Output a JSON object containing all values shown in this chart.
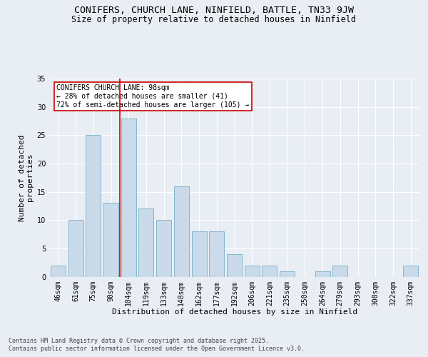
{
  "title_line1": "CONIFERS, CHURCH LANE, NINFIELD, BATTLE, TN33 9JW",
  "title_line2": "Size of property relative to detached houses in Ninfield",
  "xlabel": "Distribution of detached houses by size in Ninfield",
  "ylabel": "Number of detached\nproperties",
  "categories": [
    "46sqm",
    "61sqm",
    "75sqm",
    "90sqm",
    "104sqm",
    "119sqm",
    "133sqm",
    "148sqm",
    "162sqm",
    "177sqm",
    "192sqm",
    "206sqm",
    "221sqm",
    "235sqm",
    "250sqm",
    "264sqm",
    "279sqm",
    "293sqm",
    "308sqm",
    "322sqm",
    "337sqm"
  ],
  "values": [
    2,
    10,
    25,
    13,
    28,
    12,
    10,
    16,
    8,
    8,
    4,
    2,
    2,
    1,
    0,
    1,
    2,
    0,
    0,
    0,
    2
  ],
  "bar_color": "#c9daea",
  "bar_edge_color": "#7aafc8",
  "vline_color": "#cc0000",
  "annotation_text": "CONIFERS CHURCH LANE: 98sqm\n← 28% of detached houses are smaller (41)\n72% of semi-detached houses are larger (105) →",
  "annotation_box_color": "#ffffff",
  "annotation_box_edge": "#cc0000",
  "ylim": [
    0,
    35
  ],
  "yticks": [
    0,
    5,
    10,
    15,
    20,
    25,
    30,
    35
  ],
  "footer_line1": "Contains HM Land Registry data © Crown copyright and database right 2025.",
  "footer_line2": "Contains public sector information licensed under the Open Government Licence v3.0.",
  "bg_color": "#e8eef4",
  "plot_bg_color": "#e8eef4",
  "grid_color": "#ffffff",
  "title_fontsize": 9.5,
  "subtitle_fontsize": 8.5,
  "axis_label_fontsize": 8,
  "tick_fontsize": 7,
  "annotation_fontsize": 7,
  "footer_fontsize": 6
}
